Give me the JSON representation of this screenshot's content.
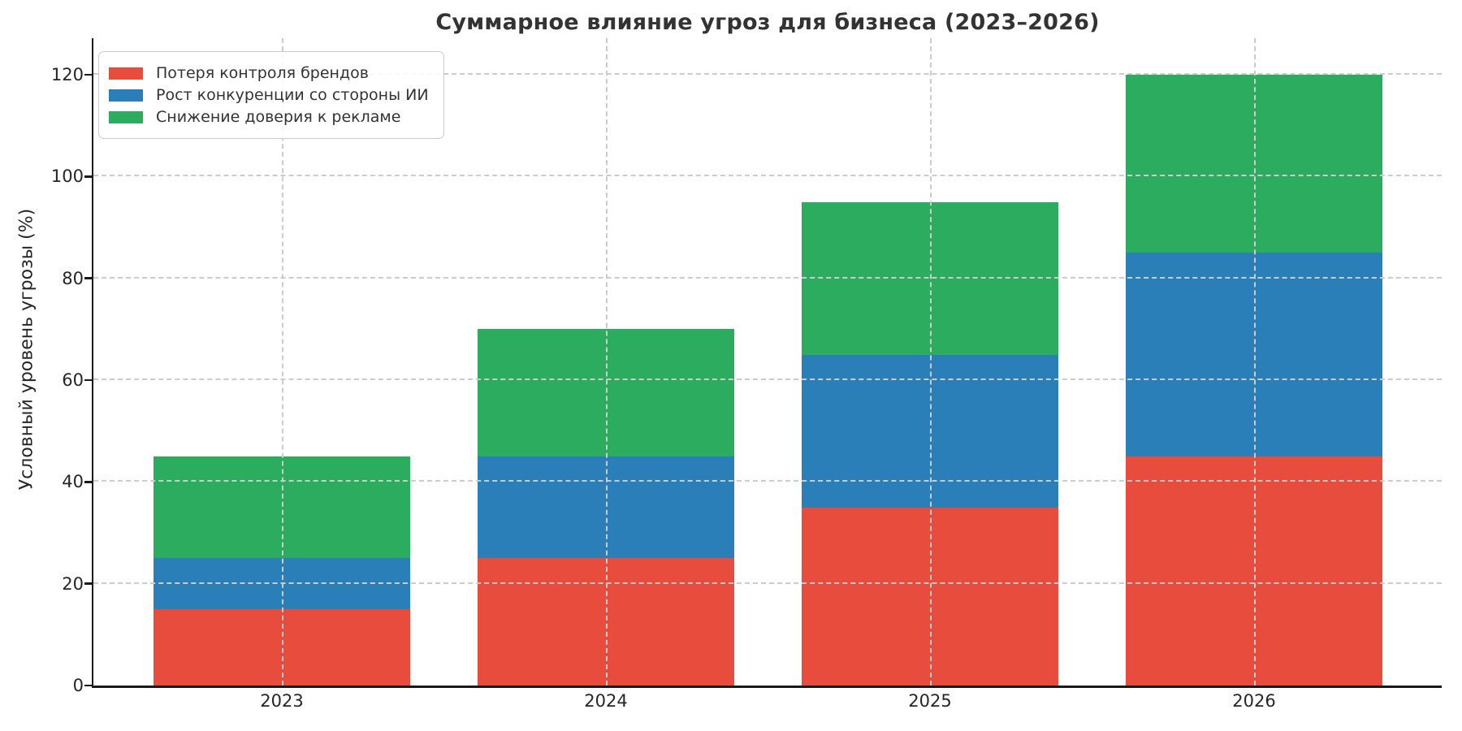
{
  "chart_data": {
    "type": "bar",
    "stacked": true,
    "title": "Суммарное влияние угроз для бизнеса (2023–2026)",
    "xlabel": "",
    "ylabel": "Условный уровень угрозы (%)",
    "categories": [
      "2023",
      "2024",
      "2025",
      "2026"
    ],
    "series": [
      {
        "name": "Потеря контроля брендов",
        "color": "#e74c3c",
        "values": [
          15,
          25,
          35,
          45
        ]
      },
      {
        "name": "Рост конкуренции со стороны ИИ",
        "color": "#2b7fb8",
        "values": [
          10,
          20,
          30,
          40
        ]
      },
      {
        "name": "Снижение доверия к рекламе",
        "color": "#2bac5f",
        "values": [
          20,
          25,
          30,
          35
        ]
      }
    ],
    "totals": [
      45,
      70,
      95,
      120
    ],
    "yticks": [
      0,
      20,
      40,
      60,
      80,
      100,
      120
    ],
    "ylim": [
      0,
      127
    ],
    "grid": {
      "axis": "both",
      "style": "dashed",
      "color": "#cccccc",
      "above_bars": true
    },
    "legend": {
      "position": "upper-left"
    }
  }
}
